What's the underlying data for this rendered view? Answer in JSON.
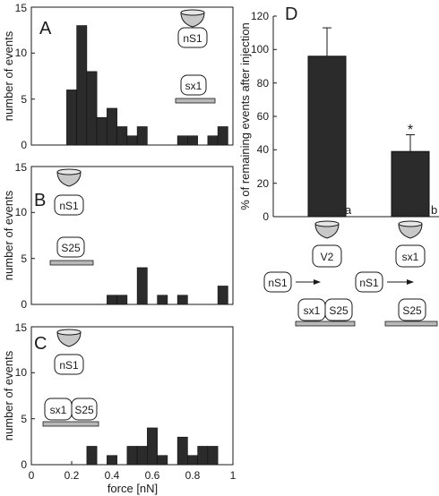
{
  "histograms": [
    {
      "panel": "A",
      "ylabel": "number of events",
      "ylim": [
        0,
        15
      ],
      "yticks": [
        "0",
        "5",
        "10",
        "15"
      ],
      "icons": {
        "vesicle": "nS1",
        "plate": "sx1"
      },
      "bins": [
        {
          "x": 0.2,
          "y": 6
        },
        {
          "x": 0.25,
          "y": 13
        },
        {
          "x": 0.3,
          "y": 8
        },
        {
          "x": 0.35,
          "y": 3
        },
        {
          "x": 0.4,
          "y": 4
        },
        {
          "x": 0.45,
          "y": 2
        },
        {
          "x": 0.5,
          "y": 1
        },
        {
          "x": 0.55,
          "y": 2
        },
        {
          "x": 0.75,
          "y": 1
        },
        {
          "x": 0.8,
          "y": 1
        },
        {
          "x": 0.9,
          "y": 1
        },
        {
          "x": 0.95,
          "y": 2
        }
      ]
    },
    {
      "panel": "B",
      "ylabel": "number of events",
      "ylim": [
        0,
        15
      ],
      "yticks": [
        "0",
        "5",
        "10",
        "15"
      ],
      "icons": {
        "vesicle": "nS1",
        "plate": "S25"
      },
      "bins": [
        {
          "x": 0.4,
          "y": 1
        },
        {
          "x": 0.45,
          "y": 1
        },
        {
          "x": 0.55,
          "y": 4
        },
        {
          "x": 0.65,
          "y": 1
        },
        {
          "x": 0.75,
          "y": 1
        },
        {
          "x": 0.95,
          "y": 2
        }
      ]
    },
    {
      "panel": "C",
      "ylabel": "number of events",
      "xlabel": "force [nN]",
      "ylim": [
        0,
        15
      ],
      "yticks": [
        "0",
        "5",
        "10",
        "15"
      ],
      "xticks": [
        "0",
        "0.2",
        "0.4",
        "0.6",
        "0.8",
        "1"
      ],
      "icons": {
        "vesicle": "nS1",
        "plate_left": "sx1",
        "plate_right": "S25"
      },
      "bins": [
        {
          "x": 0.3,
          "y": 2
        },
        {
          "x": 0.4,
          "y": 1
        },
        {
          "x": 0.5,
          "y": 2
        },
        {
          "x": 0.55,
          "y": 2
        },
        {
          "x": 0.6,
          "y": 4
        },
        {
          "x": 0.65,
          "y": 1
        },
        {
          "x": 0.75,
          "y": 3
        },
        {
          "x": 0.8,
          "y": 1
        },
        {
          "x": 0.85,
          "y": 2
        },
        {
          "x": 0.9,
          "y": 2
        }
      ]
    }
  ],
  "chart_data": [
    {
      "type": "bar",
      "panel": "A",
      "ylabel": "number of events",
      "ylim": [
        0,
        15
      ],
      "bin_width": 0.05,
      "x": [
        0.2,
        0.25,
        0.3,
        0.35,
        0.4,
        0.45,
        0.5,
        0.55,
        0.75,
        0.8,
        0.9,
        0.95
      ],
      "values": [
        6,
        13,
        8,
        3,
        4,
        2,
        1,
        2,
        1,
        1,
        1,
        2
      ]
    },
    {
      "type": "bar",
      "panel": "B",
      "ylabel": "number of events",
      "ylim": [
        0,
        15
      ],
      "bin_width": 0.05,
      "x": [
        0.4,
        0.45,
        0.55,
        0.65,
        0.75,
        0.95
      ],
      "values": [
        1,
        1,
        4,
        1,
        1,
        2
      ]
    },
    {
      "type": "bar",
      "panel": "C",
      "xlabel": "force [nN]",
      "ylabel": "number of events",
      "xlim": [
        0,
        1
      ],
      "ylim": [
        0,
        15
      ],
      "bin_width": 0.05,
      "x": [
        0.3,
        0.4,
        0.5,
        0.55,
        0.6,
        0.65,
        0.75,
        0.8,
        0.85,
        0.9
      ],
      "values": [
        2,
        1,
        2,
        2,
        4,
        1,
        3,
        1,
        2,
        2
      ]
    },
    {
      "type": "bar",
      "panel": "D",
      "ylabel": "% of remaining events after injection",
      "ylim": [
        0,
        120
      ],
      "yticks": [
        "0",
        "20",
        "40",
        "60",
        "80",
        "100",
        "120"
      ],
      "bars": [
        {
          "letter": "a",
          "value": 96,
          "error": 17,
          "vesicle": "V2",
          "mobile": "nS1",
          "plate_left": "sx1",
          "plate_right": "S25"
        },
        {
          "letter": "b",
          "value": 39,
          "error": 10,
          "vesicle": "sx1",
          "mobile": "nS1",
          "plate": "S25",
          "marker": "*"
        }
      ]
    }
  ]
}
